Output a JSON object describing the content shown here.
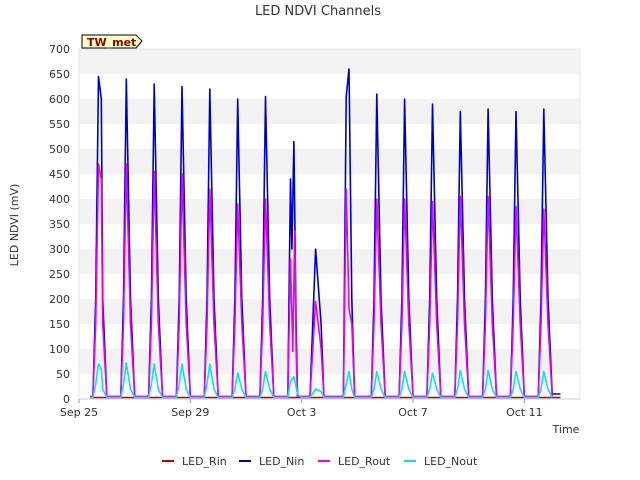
{
  "chart_data": {
    "type": "line",
    "title": "LED NDVI Channels",
    "xlabel": "Time",
    "ylabel": "LED NDVI (mV)",
    "badge": "TW_met",
    "ylim": [
      0,
      700
    ],
    "yticks": [
      0,
      50,
      100,
      150,
      200,
      250,
      300,
      350,
      400,
      450,
      500,
      550,
      600,
      650,
      700
    ],
    "xlim": [
      0,
      18
    ],
    "xticks": [
      {
        "x": 0,
        "label": "Sep 25"
      },
      {
        "x": 4,
        "label": "Sep 29"
      },
      {
        "x": 8,
        "label": "Oct 3"
      },
      {
        "x": 12,
        "label": "Oct 7"
      },
      {
        "x": 16,
        "label": "Oct 11"
      }
    ],
    "x_unit": "days since Sep 25",
    "grid": "horizontal bands",
    "legend_position": "bottom",
    "series": [
      {
        "name": "LED_Rin",
        "color": "#cc0000",
        "x": [
          0.4,
          17.3
        ],
        "values": [
          3,
          3
        ]
      },
      {
        "name": "LED_Nin",
        "color": "#0000cc",
        "x": [
          0.4,
          0.5,
          0.6,
          0.7,
          0.8,
          0.85,
          1.0,
          1.1,
          1.25,
          1.4,
          1.5,
          1.6,
          1.7,
          1.85,
          2.0,
          2.1,
          2.25,
          2.4,
          2.5,
          2.6,
          2.7,
          2.85,
          3.0,
          3.1,
          3.25,
          3.4,
          3.5,
          3.6,
          3.7,
          3.85,
          4.0,
          4.1,
          4.25,
          4.4,
          4.5,
          4.6,
          4.7,
          4.85,
          5.0,
          5.1,
          5.25,
          5.4,
          5.5,
          5.6,
          5.7,
          5.85,
          6.0,
          6.1,
          6.25,
          6.4,
          6.5,
          6.6,
          6.7,
          6.85,
          7.0,
          7.1,
          7.25,
          7.4,
          7.5,
          7.6,
          7.65,
          7.72,
          7.8,
          7.85,
          8.0,
          8.3,
          8.5,
          8.7,
          8.8,
          8.9,
          9.0,
          9.2,
          9.5,
          9.6,
          9.7,
          9.8,
          9.9,
          10.0,
          10.1,
          10.25,
          10.4,
          10.5,
          10.6,
          10.7,
          10.85,
          11.0,
          11.1,
          11.25,
          11.4,
          11.5,
          11.6,
          11.7,
          11.85,
          12.0,
          12.1,
          12.25,
          12.4,
          12.5,
          12.6,
          12.7,
          12.85,
          13.0,
          13.1,
          13.25,
          13.4,
          13.5,
          13.6,
          13.7,
          13.85,
          14.0,
          14.1,
          14.25,
          14.4,
          14.5,
          14.6,
          14.7,
          14.85,
          15.0,
          15.1,
          15.25,
          15.4,
          15.5,
          15.6,
          15.7,
          15.85,
          16.0,
          16.1,
          16.25,
          16.4,
          16.5,
          16.6,
          16.7,
          16.85,
          17.0,
          17.3
        ],
        "values": [
          5,
          5,
          200,
          645,
          600,
          200,
          5,
          5,
          5,
          5,
          5,
          200,
          640,
          200,
          5,
          5,
          5,
          5,
          5,
          200,
          630,
          200,
          5,
          5,
          5,
          5,
          5,
          200,
          625,
          200,
          5,
          5,
          5,
          5,
          5,
          200,
          620,
          200,
          5,
          5,
          5,
          5,
          5,
          200,
          600,
          200,
          5,
          5,
          5,
          5,
          5,
          200,
          605,
          200,
          5,
          5,
          5,
          5,
          5,
          440,
          300,
          515,
          150,
          5,
          5,
          5,
          300,
          150,
          5,
          5,
          5,
          5,
          5,
          605,
          660,
          200,
          5,
          5,
          5,
          5,
          5,
          5,
          200,
          610,
          200,
          5,
          5,
          5,
          5,
          5,
          200,
          600,
          200,
          5,
          5,
          5,
          5,
          5,
          200,
          590,
          200,
          5,
          5,
          5,
          5,
          5,
          200,
          575,
          200,
          5,
          5,
          5,
          5,
          5,
          200,
          580,
          200,
          5,
          5,
          5,
          5,
          5,
          200,
          575,
          200,
          5,
          5,
          5,
          5,
          5,
          200,
          580,
          200,
          10,
          10
        ]
      },
      {
        "name": "LED_Rout",
        "color": "#ee00ee",
        "x": [
          0.4,
          0.5,
          0.6,
          0.7,
          0.8,
          0.85,
          1.0,
          1.1,
          1.25,
          1.4,
          1.5,
          1.6,
          1.7,
          1.85,
          2.0,
          2.1,
          2.25,
          2.4,
          2.5,
          2.6,
          2.7,
          2.85,
          3.0,
          3.1,
          3.25,
          3.4,
          3.5,
          3.6,
          3.7,
          3.85,
          4.0,
          4.1,
          4.25,
          4.4,
          4.5,
          4.6,
          4.7,
          4.85,
          5.0,
          5.1,
          5.25,
          5.4,
          5.5,
          5.6,
          5.7,
          5.85,
          6.0,
          6.1,
          6.25,
          6.4,
          6.5,
          6.6,
          6.7,
          6.85,
          7.0,
          7.1,
          7.25,
          7.4,
          7.5,
          7.6,
          7.68,
          7.75,
          7.8,
          7.85,
          8.0,
          8.3,
          8.5,
          8.7,
          8.8,
          8.9,
          9.0,
          9.2,
          9.5,
          9.6,
          9.7,
          9.8,
          9.9,
          10.0,
          10.1,
          10.25,
          10.4,
          10.5,
          10.6,
          10.7,
          10.85,
          11.0,
          11.1,
          11.25,
          11.4,
          11.5,
          11.6,
          11.7,
          11.85,
          12.0,
          12.1,
          12.25,
          12.4,
          12.5,
          12.6,
          12.7,
          12.85,
          13.0,
          13.1,
          13.25,
          13.4,
          13.5,
          13.6,
          13.7,
          13.85,
          14.0,
          14.1,
          14.25,
          14.4,
          14.5,
          14.6,
          14.7,
          14.85,
          15.0,
          15.1,
          15.25,
          15.4,
          15.5,
          15.6,
          15.7,
          15.85,
          16.0,
          16.1,
          16.25,
          16.4,
          16.5,
          16.6,
          16.7,
          16.85,
          17.0
        ],
        "values": [
          5,
          5,
          150,
          470,
          440,
          150,
          5,
          5,
          5,
          5,
          5,
          150,
          470,
          150,
          5,
          5,
          5,
          5,
          5,
          150,
          455,
          150,
          5,
          5,
          5,
          5,
          5,
          150,
          450,
          150,
          5,
          5,
          5,
          5,
          5,
          150,
          420,
          150,
          5,
          5,
          5,
          5,
          5,
          150,
          390,
          150,
          5,
          5,
          5,
          5,
          5,
          150,
          400,
          150,
          5,
          5,
          5,
          5,
          5,
          280,
          95,
          335,
          100,
          5,
          5,
          5,
          195,
          100,
          5,
          5,
          5,
          5,
          5,
          420,
          180,
          150,
          5,
          5,
          5,
          5,
          5,
          5,
          150,
          400,
          150,
          5,
          5,
          5,
          5,
          5,
          150,
          400,
          150,
          5,
          5,
          5,
          5,
          5,
          150,
          395,
          150,
          5,
          5,
          5,
          5,
          5,
          150,
          405,
          150,
          5,
          5,
          5,
          5,
          5,
          150,
          405,
          150,
          5,
          5,
          5,
          5,
          5,
          150,
          385,
          150,
          5,
          5,
          5,
          5,
          5,
          150,
          380,
          150,
          5
        ]
      },
      {
        "name": "LED_Nout",
        "color": "#00e5ee",
        "x": [
          0.4,
          0.5,
          0.6,
          0.7,
          0.8,
          0.85,
          1.0,
          1.1,
          1.25,
          1.4,
          1.5,
          1.6,
          1.7,
          1.85,
          2.0,
          2.1,
          2.25,
          2.4,
          2.5,
          2.6,
          2.7,
          2.85,
          3.0,
          3.1,
          3.25,
          3.4,
          3.5,
          3.6,
          3.7,
          3.85,
          4.0,
          4.1,
          4.25,
          4.4,
          4.5,
          4.6,
          4.7,
          4.85,
          5.0,
          5.1,
          5.25,
          5.4,
          5.5,
          5.6,
          5.7,
          5.85,
          6.0,
          6.1,
          6.25,
          6.4,
          6.5,
          6.6,
          6.7,
          6.85,
          7.0,
          7.1,
          7.25,
          7.4,
          7.5,
          7.6,
          7.72,
          7.85,
          8.0,
          8.3,
          8.5,
          8.7,
          8.8,
          8.9,
          9.0,
          9.2,
          9.5,
          9.6,
          9.7,
          9.8,
          9.9,
          10.0,
          10.1,
          10.25,
          10.4,
          10.5,
          10.6,
          10.7,
          10.85,
          11.0,
          11.1,
          11.25,
          11.4,
          11.5,
          11.6,
          11.7,
          11.85,
          12.0,
          12.1,
          12.25,
          12.4,
          12.5,
          12.6,
          12.7,
          12.85,
          13.0,
          13.1,
          13.25,
          13.4,
          13.5,
          13.6,
          13.7,
          13.85,
          14.0,
          14.1,
          14.25,
          14.4,
          14.5,
          14.6,
          14.7,
          14.85,
          15.0,
          15.1,
          15.25,
          15.4,
          15.5,
          15.6,
          15.7,
          15.85,
          16.0,
          16.1,
          16.25,
          16.4,
          16.5,
          16.6,
          16.7,
          16.85,
          17.0
        ],
        "values": [
          3,
          3,
          30,
          70,
          60,
          20,
          3,
          3,
          3,
          3,
          3,
          30,
          72,
          20,
          3,
          3,
          3,
          3,
          3,
          30,
          70,
          20,
          3,
          3,
          3,
          3,
          3,
          30,
          70,
          20,
          3,
          3,
          3,
          3,
          3,
          30,
          70,
          20,
          3,
          3,
          3,
          3,
          3,
          20,
          52,
          20,
          3,
          3,
          3,
          3,
          3,
          20,
          55,
          20,
          3,
          3,
          3,
          3,
          3,
          35,
          45,
          10,
          3,
          3,
          20,
          15,
          3,
          3,
          3,
          3,
          3,
          30,
          55,
          20,
          3,
          3,
          3,
          3,
          3,
          3,
          20,
          55,
          20,
          3,
          3,
          3,
          3,
          3,
          20,
          55,
          20,
          3,
          3,
          3,
          3,
          3,
          20,
          52,
          20,
          3,
          3,
          3,
          3,
          3,
          20,
          57,
          20,
          3,
          3,
          3,
          3,
          3,
          20,
          57,
          20,
          3,
          3,
          3,
          3,
          3,
          20,
          55,
          20,
          3,
          3,
          3,
          3,
          3,
          20,
          55,
          20,
          3
        ]
      }
    ]
  }
}
